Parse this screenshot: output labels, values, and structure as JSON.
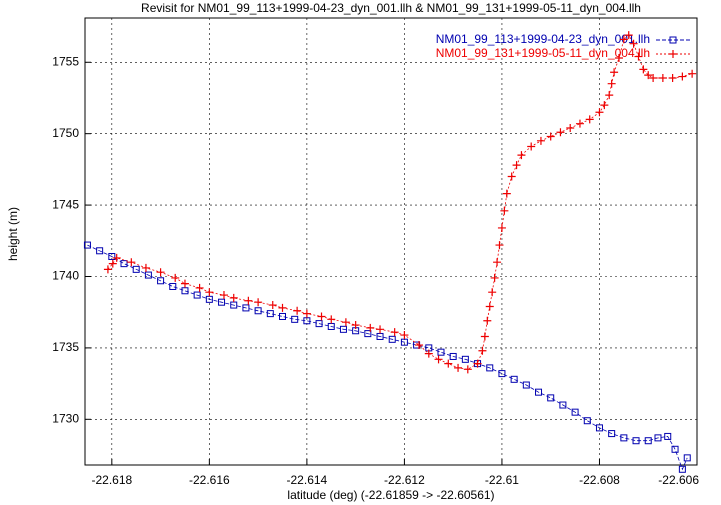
{
  "chart_data": {
    "type": "scatter",
    "title": "Revisit for NM01_99_113+1999-04-23_dyn_001.llh & NM01_99_131+1999-05-11_dyn_004.llh",
    "xlabel": "latitude (deg) (-22.61859 -> -22.60561)",
    "ylabel": "height (m)",
    "xlim": [
      -22.61855,
      -22.606
    ],
    "ylim": [
      1726.8,
      1758.1
    ],
    "xticks": [
      -22.618,
      -22.616,
      -22.614,
      -22.612,
      -22.61,
      -22.608,
      -22.606
    ],
    "yticks": [
      1730,
      1735,
      1740,
      1745,
      1750,
      1755
    ],
    "grid": true,
    "legend": "top-right",
    "series": [
      {
        "name": "NM01_99_113+1999-04-23_dyn_001.llh",
        "color": "#0000b0",
        "marker": "square",
        "x": [
          -22.6185,
          -22.61825,
          -22.618,
          -22.61775,
          -22.6175,
          -22.61725,
          -22.617,
          -22.61675,
          -22.6165,
          -22.61625,
          -22.616,
          -22.61575,
          -22.6155,
          -22.61525,
          -22.615,
          -22.61475,
          -22.6145,
          -22.61425,
          -22.614,
          -22.61375,
          -22.6135,
          -22.61325,
          -22.613,
          -22.61275,
          -22.6125,
          -22.61225,
          -22.612,
          -22.61175,
          -22.6115,
          -22.61125,
          -22.611,
          -22.61075,
          -22.6105,
          -22.61025,
          -22.61,
          -22.60975,
          -22.6095,
          -22.60925,
          -22.609,
          -22.60875,
          -22.6085,
          -22.60825,
          -22.608,
          -22.60775,
          -22.6075,
          -22.60725,
          -22.607,
          -22.6068,
          -22.6066,
          -22.60645,
          -22.6063,
          -22.6062
        ],
        "values": [
          1742.2,
          1741.8,
          1741.4,
          1740.9,
          1740.5,
          1740.1,
          1739.7,
          1739.3,
          1739.0,
          1738.7,
          1738.4,
          1738.2,
          1738.0,
          1737.8,
          1737.6,
          1737.4,
          1737.2,
          1737.0,
          1736.9,
          1736.7,
          1736.5,
          1736.3,
          1736.2,
          1736.0,
          1735.8,
          1735.6,
          1735.4,
          1735.2,
          1735.0,
          1734.7,
          1734.4,
          1734.2,
          1733.9,
          1733.6,
          1733.2,
          1732.8,
          1732.4,
          1731.9,
          1731.5,
          1731.0,
          1730.5,
          1729.9,
          1729.4,
          1729.0,
          1728.7,
          1728.5,
          1728.5,
          1728.7,
          1728.8,
          1727.9,
          1726.5,
          1727.3
        ]
      },
      {
        "name": "NM01_99_131+1999-05-11_dyn_004.llh",
        "color": "#ee0000",
        "marker": "plus",
        "x": [
          -22.61808,
          -22.61798,
          -22.6179,
          -22.6176,
          -22.6173,
          -22.617,
          -22.6167,
          -22.6165,
          -22.6162,
          -22.616,
          -22.6157,
          -22.6155,
          -22.6152,
          -22.615,
          -22.6147,
          -22.6145,
          -22.6142,
          -22.614,
          -22.6137,
          -22.6135,
          -22.6132,
          -22.613,
          -22.6127,
          -22.6125,
          -22.6122,
          -22.612,
          -22.6117,
          -22.6115,
          -22.6113,
          -22.6111,
          -22.6109,
          -22.6107,
          -22.6105,
          -22.6104,
          -22.61035,
          -22.6103,
          -22.61025,
          -22.6102,
          -22.61015,
          -22.6101,
          -22.61005,
          -22.61,
          -22.60995,
          -22.6099,
          -22.6098,
          -22.6097,
          -22.6096,
          -22.6094,
          -22.6092,
          -22.609,
          -22.6088,
          -22.6086,
          -22.6084,
          -22.6082,
          -22.608,
          -22.6079,
          -22.6078,
          -22.60775,
          -22.6077,
          -22.6076,
          -22.6075,
          -22.6074,
          -22.6073,
          -22.6072,
          -22.6071,
          -22.607,
          -22.6069,
          -22.6067,
          -22.6065,
          -22.6063,
          -22.6061
        ],
        "values": [
          1740.5,
          1740.9,
          1741.3,
          1741.0,
          1740.6,
          1740.3,
          1739.9,
          1739.5,
          1739.2,
          1738.9,
          1738.7,
          1738.5,
          1738.3,
          1738.2,
          1738.0,
          1737.8,
          1737.6,
          1737.4,
          1737.2,
          1737.0,
          1736.8,
          1736.6,
          1736.4,
          1736.3,
          1736.1,
          1735.9,
          1735.2,
          1734.6,
          1734.2,
          1733.9,
          1733.6,
          1733.5,
          1733.9,
          1734.8,
          1735.8,
          1736.9,
          1737.9,
          1738.9,
          1739.9,
          1741.0,
          1742.2,
          1743.4,
          1744.6,
          1745.8,
          1747.0,
          1747.8,
          1748.5,
          1749.1,
          1749.5,
          1749.8,
          1750.1,
          1750.4,
          1750.7,
          1751.0,
          1751.5,
          1752.0,
          1752.7,
          1753.5,
          1754.3,
          1755.3,
          1756.6,
          1756.9,
          1756.3,
          1755.4,
          1754.5,
          1754.1,
          1753.9,
          1753.9,
          1753.9,
          1754.0,
          1754.2
        ]
      }
    ]
  }
}
